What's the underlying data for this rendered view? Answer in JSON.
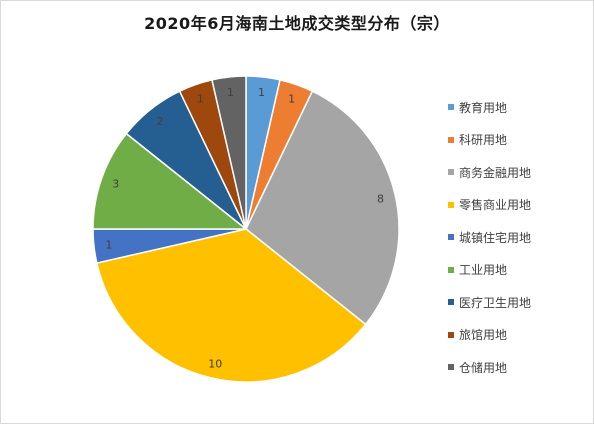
{
  "chart_data": {
    "type": "pie",
    "title": "2020年6月海南土地成交类型分布（宗）",
    "categories": [
      "教育用地",
      "科研用地",
      "商务金融用地",
      "零售商业用地",
      "城镇住宅用地",
      "工业用地",
      "医疗卫生用地",
      "旅馆用地",
      "仓储用地"
    ],
    "values": [
      1,
      1,
      8,
      10,
      1,
      3,
      2,
      1,
      1
    ],
    "colors": [
      "#5b9bd5",
      "#ed7d31",
      "#a5a5a5",
      "#ffc000",
      "#4472c4",
      "#70ad47",
      "#255e91",
      "#9e480e",
      "#636363"
    ],
    "legend_position": "right",
    "start_angle_deg": 0,
    "direction": "clockwise"
  }
}
